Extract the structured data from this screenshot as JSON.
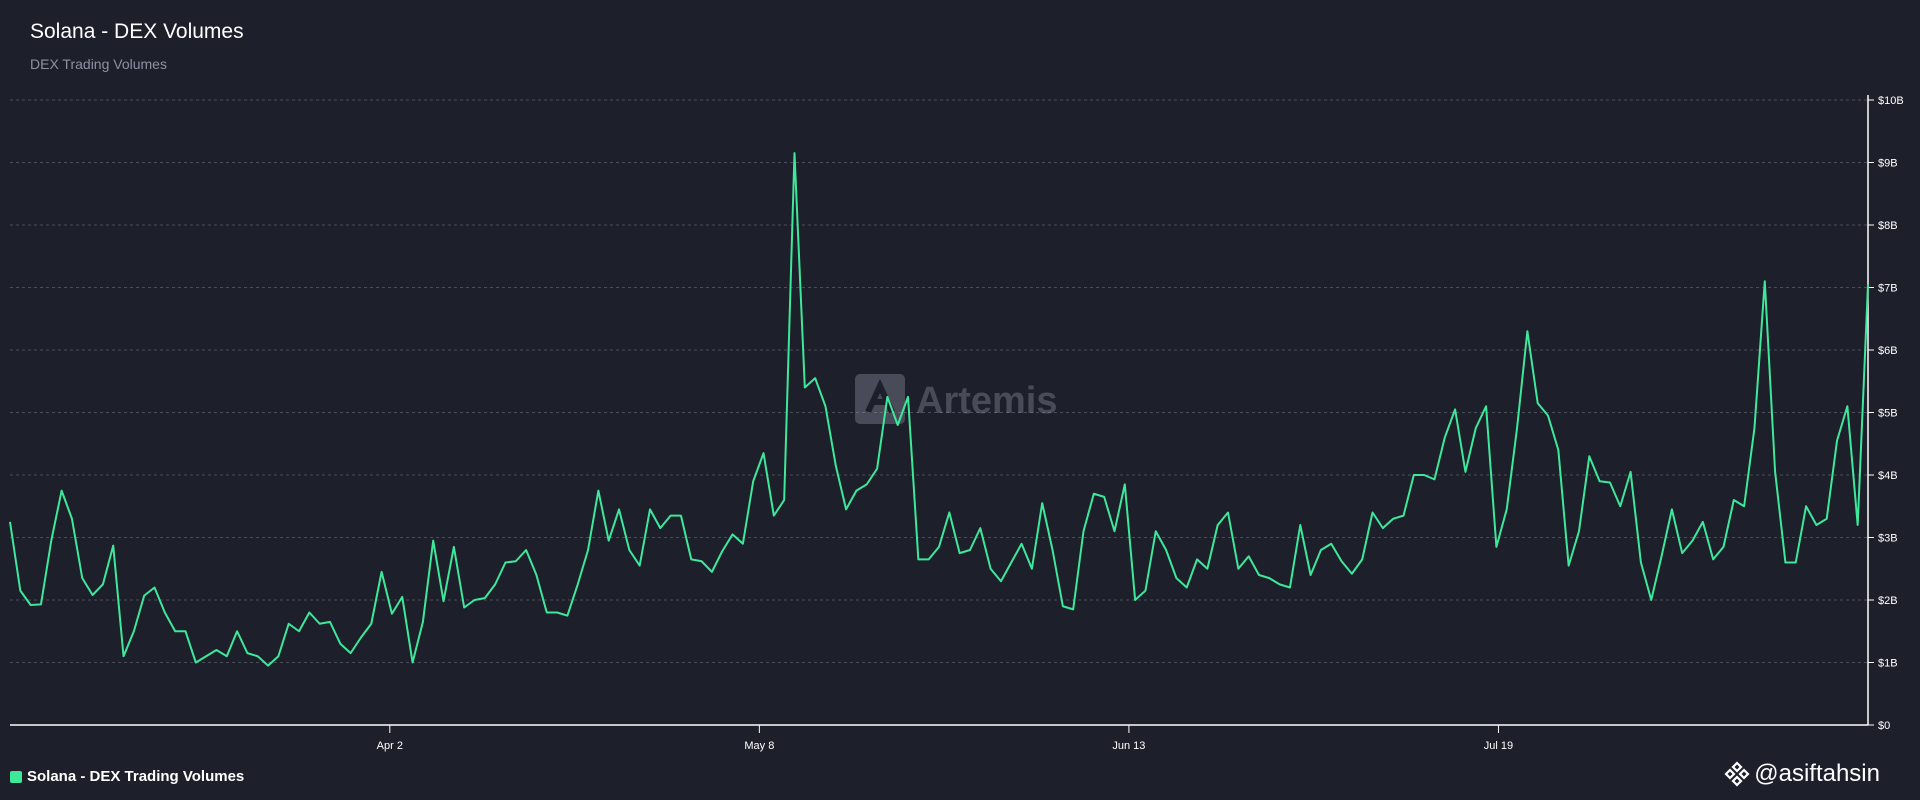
{
  "header": {
    "title": "Solana - DEX Volumes",
    "subtitle": "DEX Trading Volumes"
  },
  "watermark": {
    "text": "Artemis"
  },
  "legend": {
    "label": "Solana - DEX Trading Volumes",
    "color": "#3ee89a"
  },
  "handle": {
    "text": "@asiftahsin",
    "icon": "binance-icon"
  },
  "colors": {
    "background": "#1d1f2b",
    "line": "#3ee89a",
    "grid": "#4a4d5a",
    "text": "#ffffff"
  },
  "chart_data": {
    "type": "line",
    "title": "Solana - DEX Volumes",
    "subtitle": "DEX Trading Volumes",
    "y_unit": "USD (billions)",
    "ylim": [
      0,
      10
    ],
    "y_ticks": [
      0,
      1,
      2,
      3,
      4,
      5,
      6,
      7,
      8,
      9,
      10
    ],
    "y_tick_labels": [
      "$0",
      "$1B",
      "$2B",
      "$3B",
      "$4B",
      "$5B",
      "$6B",
      "$7B",
      "$8B",
      "$9B",
      "$10B"
    ],
    "y_axis_position": "right",
    "grid": true,
    "x_ticks": [
      {
        "label": "Apr 2",
        "date": "2024-04-02"
      },
      {
        "label": "May 8",
        "date": "2024-05-08"
      },
      {
        "label": "Jun 13",
        "date": "2024-06-13"
      },
      {
        "label": "Jul 19",
        "date": "2024-07-19"
      }
    ],
    "x_start": "2024-02-25",
    "x_end": "2024-08-24",
    "legend_position": "bottom-left",
    "series": [
      {
        "name": "Solana - DEX Trading Volumes",
        "color": "#3ee89a",
        "values": [
          3.25,
          2.15,
          1.92,
          1.93,
          2.95,
          3.75,
          3.3,
          2.35,
          2.08,
          2.25,
          2.87,
          1.1,
          1.5,
          2.07,
          2.2,
          1.8,
          1.5,
          1.5,
          1.0,
          1.1,
          1.2,
          1.1,
          1.5,
          1.15,
          1.1,
          0.95,
          1.1,
          1.62,
          1.5,
          1.8,
          1.62,
          1.65,
          1.3,
          1.15,
          1.4,
          1.62,
          2.45,
          1.78,
          2.05,
          1.0,
          1.65,
          2.95,
          1.98,
          2.85,
          1.88,
          2.0,
          2.03,
          2.25,
          2.6,
          2.62,
          2.8,
          2.4,
          1.8,
          1.8,
          1.75,
          2.25,
          2.8,
          3.75,
          2.95,
          3.45,
          2.8,
          2.55,
          3.45,
          3.15,
          3.35,
          3.35,
          2.65,
          2.62,
          2.45,
          2.78,
          3.05,
          2.9,
          3.9,
          4.35,
          3.35,
          3.6,
          9.15,
          5.4,
          5.55,
          5.1,
          4.15,
          3.45,
          3.75,
          3.85,
          4.1,
          5.25,
          4.8,
          5.25,
          2.65,
          2.65,
          2.85,
          3.4,
          2.75,
          2.8,
          3.15,
          2.5,
          2.3,
          2.6,
          2.9,
          2.5,
          3.55,
          2.8,
          1.9,
          1.85,
          3.1,
          3.7,
          3.65,
          3.1,
          3.85,
          2.0,
          2.15,
          3.1,
          2.8,
          2.35,
          2.2,
          2.65,
          2.5,
          3.2,
          3.4,
          2.5,
          2.7,
          2.4,
          2.35,
          2.25,
          2.2,
          3.2,
          2.4,
          2.8,
          2.9,
          2.62,
          2.42,
          2.65,
          3.4,
          3.15,
          3.3,
          3.35,
          4.0,
          4.0,
          3.93,
          4.6,
          5.05,
          4.05,
          4.75,
          5.1,
          2.85,
          3.45,
          4.75,
          6.3,
          5.15,
          4.95,
          4.4,
          2.55,
          3.1,
          4.3,
          3.9,
          3.88,
          3.5,
          4.05,
          2.6,
          2.0,
          2.7,
          3.45,
          2.75,
          2.95,
          3.25,
          2.65,
          2.85,
          3.6,
          3.5,
          4.75,
          7.1,
          4.05,
          2.6,
          2.6,
          3.5,
          3.2,
          3.3,
          4.55,
          5.1,
          3.2,
          7.05
        ]
      }
    ]
  }
}
